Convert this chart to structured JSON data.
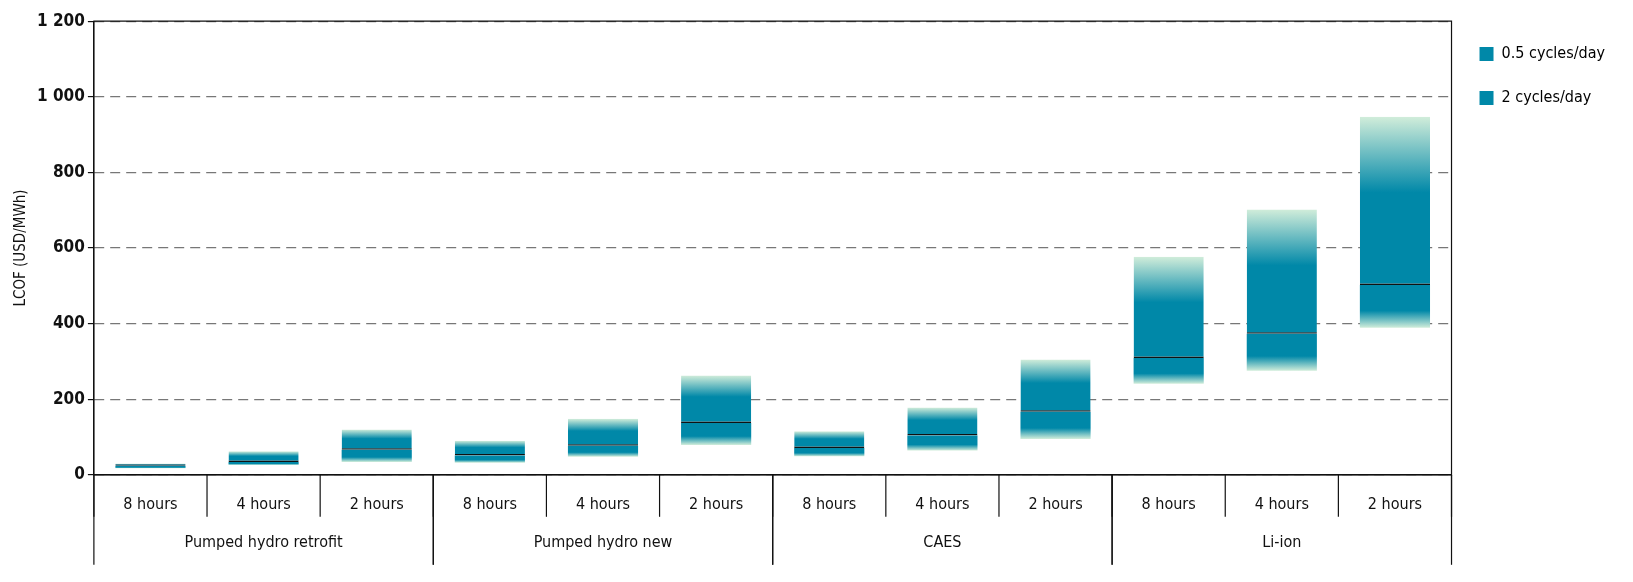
{
  "chart_data": {
    "type": "bar",
    "ylabel": "LCOF (USD/MWh)",
    "categories": [
      "8 hours",
      "4 hours",
      "2 hours",
      "8 hours",
      "4 hours",
      "2 hours",
      "8 hours",
      "4 hours",
      "2 hours",
      "8 hours",
      "4 hours",
      "2 hours"
    ],
    "annotations": [
      "Pumped hydro retrofit",
      "Pumped hydro new",
      "CAES",
      "Li-ion"
    ],
    "stacked": true,
    "series": [
      {
        "name": "2 cycles/day",
        "color": "#0088a8",
        "base": [
          17,
          26,
          34,
          32,
          48,
          79,
          49,
          64,
          95,
          241,
          275,
          389
        ],
        "values": [
          7,
          8,
          32,
          19,
          29,
          58,
          22,
          40,
          72,
          68,
          98,
          113
        ]
      },
      {
        "name": "0.5 cycles/day",
        "color": "#0088a8",
        "base": [
          24,
          34,
          66,
          51,
          77,
          137,
          71,
          104,
          167,
          309,
          373,
          502
        ],
        "values": [
          6,
          28,
          54,
          39,
          71,
          126,
          44,
          74,
          138,
          268,
          329,
          445
        ]
      }
    ],
    "ylim": [
      0,
      1200
    ],
    "yticks": [
      0,
      200,
      400,
      600,
      800,
      {
        "value": 1000,
        "label": "1 000"
      },
      {
        "value": 1200,
        "label": "1 200"
      }
    ],
    "grid": "y",
    "legend": "top right"
  }
}
